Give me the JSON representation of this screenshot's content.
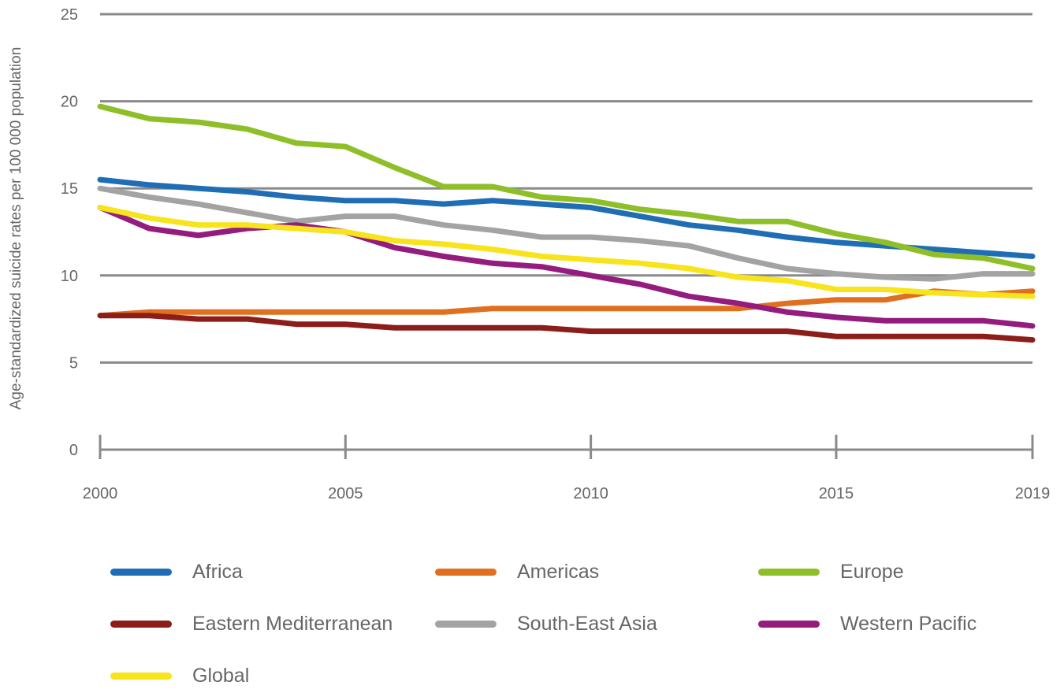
{
  "chart_data": {
    "type": "line",
    "ylabel": "Age-standardized suicide rates per 100 000 population",
    "xlabel": "",
    "x_ticks": [
      "2000",
      "2005",
      "2010",
      "2015",
      "2019"
    ],
    "y_ticks": [
      "0",
      "5",
      "10",
      "15",
      "20",
      "25"
    ],
    "xlim": [
      2000,
      2019
    ],
    "ylim": [
      0,
      25
    ],
    "grid": "horizontal",
    "legend_position": "bottom",
    "x": [
      2000,
      2001,
      2002,
      2003,
      2004,
      2005,
      2006,
      2007,
      2008,
      2009,
      2010,
      2011,
      2012,
      2013,
      2014,
      2015,
      2016,
      2017,
      2018,
      2019
    ],
    "series": [
      {
        "name": "Africa",
        "color": "#1f6eb5",
        "values": [
          15.5,
          15.2,
          15.0,
          14.8,
          14.5,
          14.3,
          14.3,
          14.1,
          14.3,
          14.1,
          13.9,
          13.4,
          12.9,
          12.6,
          12.2,
          11.9,
          11.7,
          11.5,
          11.3,
          11.1
        ]
      },
      {
        "name": "Americas",
        "color": "#e07020",
        "values": [
          7.7,
          7.9,
          7.9,
          7.9,
          7.9,
          7.9,
          7.9,
          7.9,
          8.1,
          8.1,
          8.1,
          8.1,
          8.1,
          8.1,
          8.4,
          8.6,
          8.6,
          9.1,
          8.9,
          9.1
        ]
      },
      {
        "name": "Europe",
        "color": "#8fbf28",
        "values": [
          19.7,
          19.0,
          18.8,
          18.4,
          17.6,
          17.4,
          16.2,
          15.1,
          15.1,
          14.5,
          14.3,
          13.8,
          13.5,
          13.1,
          13.1,
          12.4,
          11.9,
          11.2,
          11.0,
          10.4
        ]
      },
      {
        "name": "Eastern Mediterranean",
        "color": "#8c1d18",
        "values": [
          7.7,
          7.7,
          7.5,
          7.5,
          7.2,
          7.2,
          7.0,
          7.0,
          7.0,
          7.0,
          6.8,
          6.8,
          6.8,
          6.8,
          6.8,
          6.5,
          6.5,
          6.5,
          6.5,
          6.3
        ]
      },
      {
        "name": "South-East Asia",
        "color": "#a3a3a3",
        "values": [
          15.0,
          14.5,
          14.1,
          13.6,
          13.1,
          13.4,
          13.4,
          12.9,
          12.6,
          12.2,
          12.2,
          12.0,
          11.7,
          11.0,
          10.4,
          10.1,
          9.9,
          9.8,
          10.1,
          10.1
        ]
      },
      {
        "name": "Western Pacific",
        "color": "#951c7f",
        "values": [
          13.9,
          12.7,
          12.3,
          12.7,
          12.9,
          12.5,
          11.6,
          11.1,
          10.7,
          10.5,
          10.0,
          9.5,
          8.8,
          8.4,
          7.9,
          7.6,
          7.4,
          7.4,
          7.4,
          7.1
        ]
      },
      {
        "name": "Global",
        "color": "#f7e41c",
        "values": [
          13.9,
          13.3,
          12.9,
          12.9,
          12.7,
          12.5,
          12.0,
          11.8,
          11.5,
          11.1,
          10.9,
          10.7,
          10.4,
          9.9,
          9.7,
          9.2,
          9.2,
          9.0,
          8.9,
          8.8
        ]
      }
    ]
  },
  "legend": [
    {
      "label": "Africa",
      "color": "#1f6eb5"
    },
    {
      "label": "Americas",
      "color": "#e07020"
    },
    {
      "label": "Europe",
      "color": "#8fbf28"
    },
    {
      "label": "Eastern Mediterranean",
      "color": "#8c1d18"
    },
    {
      "label": "South-East Asia",
      "color": "#a3a3a3"
    },
    {
      "label": "Western Pacific",
      "color": "#951c7f"
    },
    {
      "label": "Global",
      "color": "#f7e41c"
    }
  ]
}
